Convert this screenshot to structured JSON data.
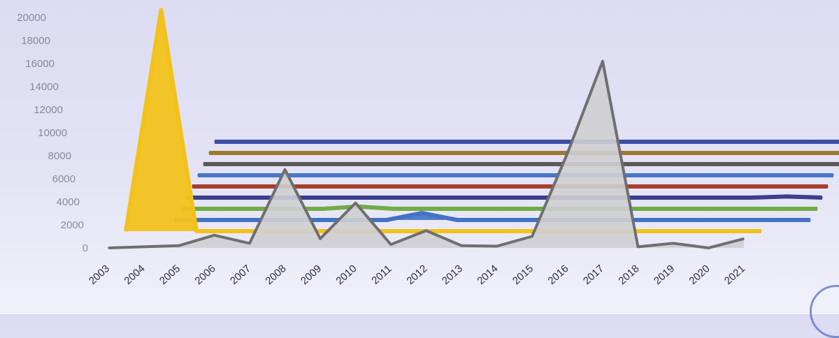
{
  "chart_data": {
    "type": "area",
    "three_d": true,
    "y_ticks": [
      "0",
      "2000",
      "4000",
      "6000",
      "8000",
      "10000",
      "12000",
      "14000",
      "16000",
      "18000",
      "20000"
    ],
    "ylim": [
      0,
      20000
    ],
    "x": [
      "2003",
      "2004",
      "2005",
      "2006",
      "2007",
      "2008",
      "2009",
      "2010",
      "2011",
      "2012",
      "2013",
      "2014",
      "2015",
      "2016",
      "2017",
      "2018",
      "2019",
      "2020",
      "2021"
    ],
    "series": [
      {
        "color": "#9b9b9b",
        "values": [
          0,
          100,
          200,
          1100,
          400,
          6800,
          800,
          3900,
          300,
          1500,
          200,
          150,
          1000,
          8200,
          16200,
          100,
          400,
          0,
          800
        ]
      },
      {
        "color": "#f2c21b",
        "values": [
          0,
          19200,
          0,
          0,
          0,
          0,
          0,
          0,
          0,
          0,
          0,
          0,
          0,
          0,
          0,
          0,
          0,
          0,
          0
        ]
      },
      {
        "color": "#4472c4",
        "values": [
          0,
          0,
          0,
          0,
          0,
          0,
          0,
          600,
          0,
          0,
          0,
          0,
          0,
          0,
          0,
          0,
          0,
          0,
          0
        ]
      },
      {
        "color": "#70ad47",
        "values": [
          0,
          0,
          0,
          0,
          0,
          200,
          0,
          0,
          0,
          0,
          0,
          0,
          0,
          0,
          0,
          0,
          0,
          0,
          0
        ]
      },
      {
        "color": "#3a3f8f",
        "values": [
          0,
          0,
          0,
          0,
          0,
          0,
          0,
          0,
          0,
          0,
          0,
          0,
          0,
          0,
          0,
          0,
          0,
          100,
          0
        ]
      },
      {
        "color": "#a5402d",
        "values": [
          0,
          0,
          0,
          0,
          0,
          0,
          0,
          0,
          0,
          0,
          0,
          0,
          0,
          0,
          0,
          0,
          0,
          0,
          0
        ]
      },
      {
        "color": "#4a78c8",
        "values": [
          0,
          0,
          0,
          0,
          0,
          0,
          0,
          0,
          0,
          0,
          0,
          0,
          0,
          0,
          0,
          0,
          0,
          0,
          0
        ]
      },
      {
        "color": "#5a5a5a",
        "values": [
          0,
          0,
          0,
          0,
          0,
          0,
          0,
          0,
          0,
          0,
          0,
          0,
          0,
          0,
          0,
          0,
          0,
          0,
          0
        ]
      },
      {
        "color": "#9c7a2e",
        "values": [
          0,
          0,
          0,
          0,
          0,
          0,
          0,
          0,
          0,
          0,
          0,
          0,
          0,
          0,
          0,
          0,
          0,
          0,
          0
        ]
      },
      {
        "color": "#3b4fa8",
        "values": [
          0,
          0,
          0,
          0,
          0,
          0,
          0,
          0,
          0,
          0,
          0,
          0,
          0,
          0,
          0,
          0,
          0,
          0,
          0
        ]
      }
    ]
  }
}
